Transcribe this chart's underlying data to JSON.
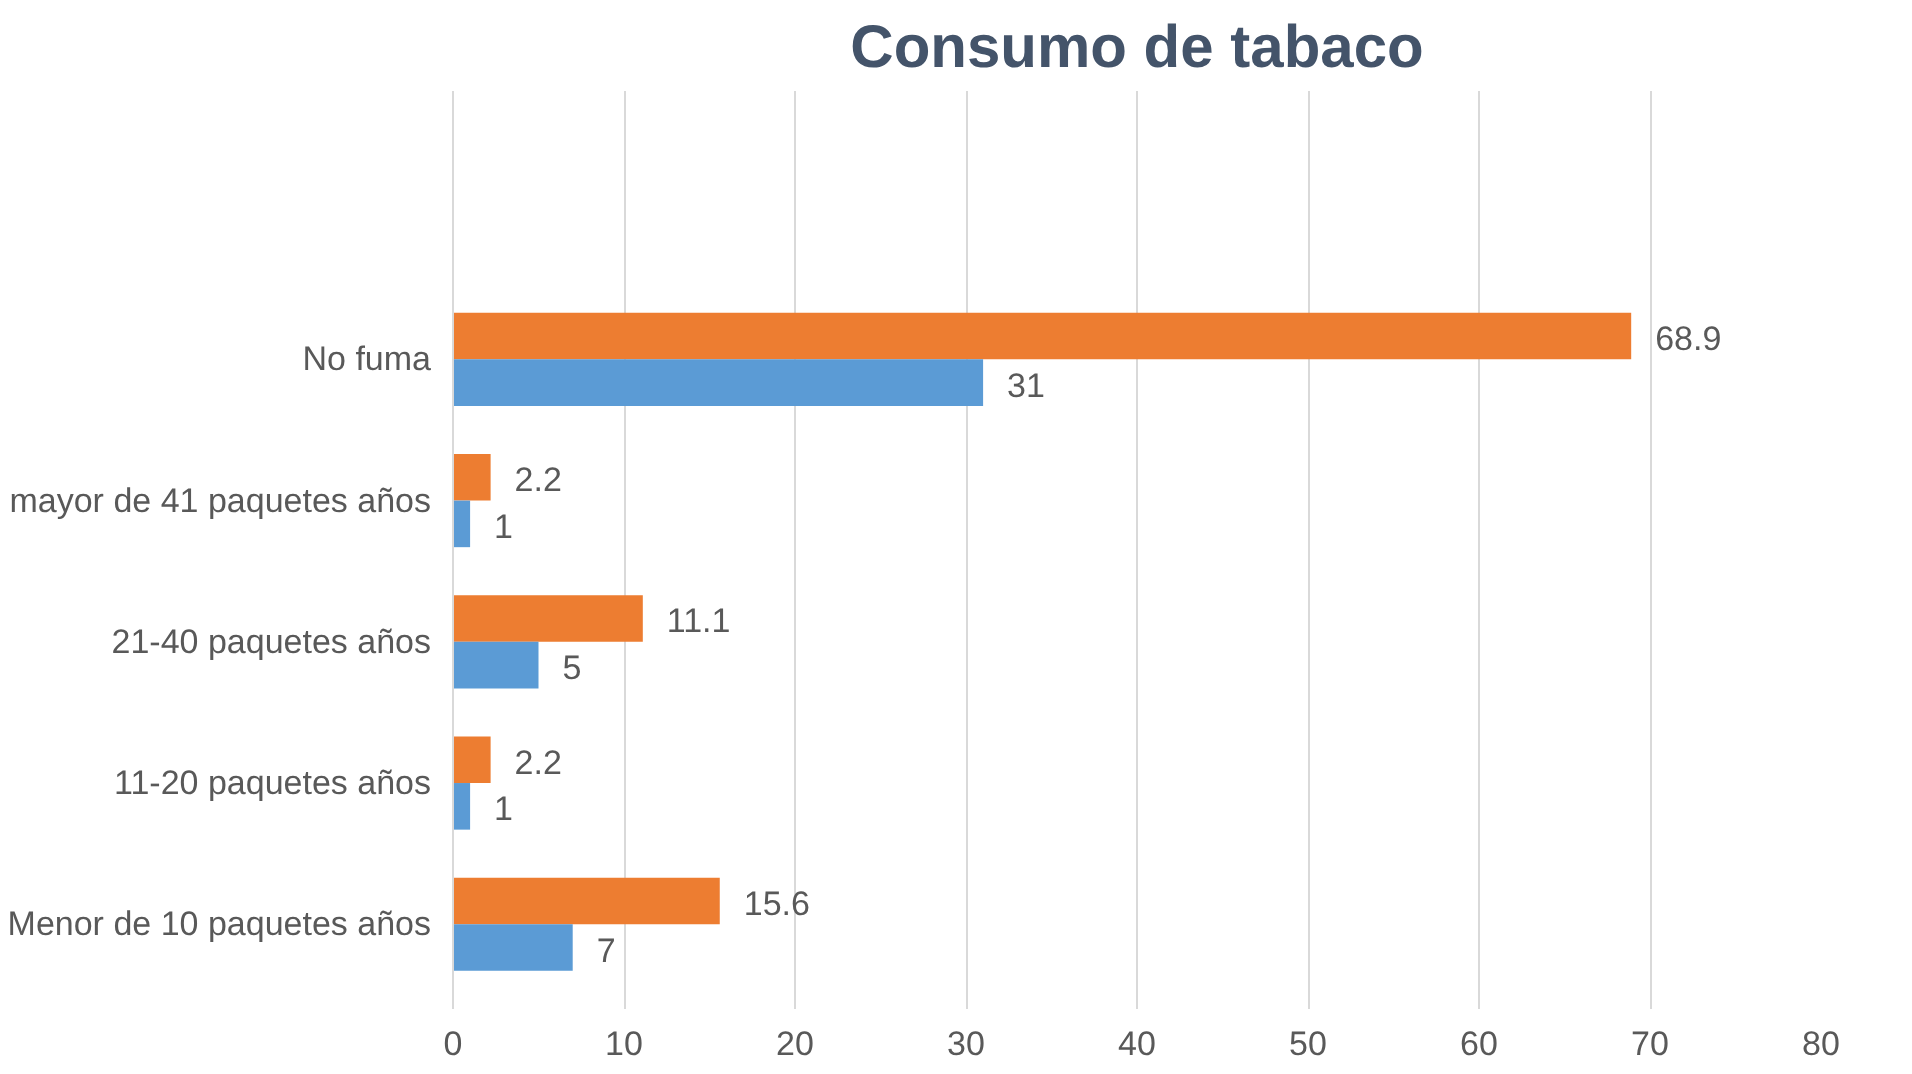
{
  "chart_data": {
    "type": "bar",
    "orientation": "horizontal",
    "title": "Consumo de tabaco",
    "categories": [
      "No fuma",
      "mayor de 41 paquetes años",
      "21-40 paquetes años",
      "11-20 paquetes años",
      "Menor de 10 paquetes años"
    ],
    "series": [
      {
        "color": "#ed7d31",
        "values": [
          68.9,
          2.2,
          11.1,
          2.2,
          15.6
        ]
      },
      {
        "color": "#5b9bd5",
        "values": [
          31,
          1,
          5,
          1,
          7
        ]
      }
    ],
    "xlim": [
      0,
      80
    ],
    "xticks": [
      0,
      10,
      20,
      30,
      40,
      50,
      60,
      70,
      80
    ],
    "grid": "x",
    "data_labels": true
  }
}
